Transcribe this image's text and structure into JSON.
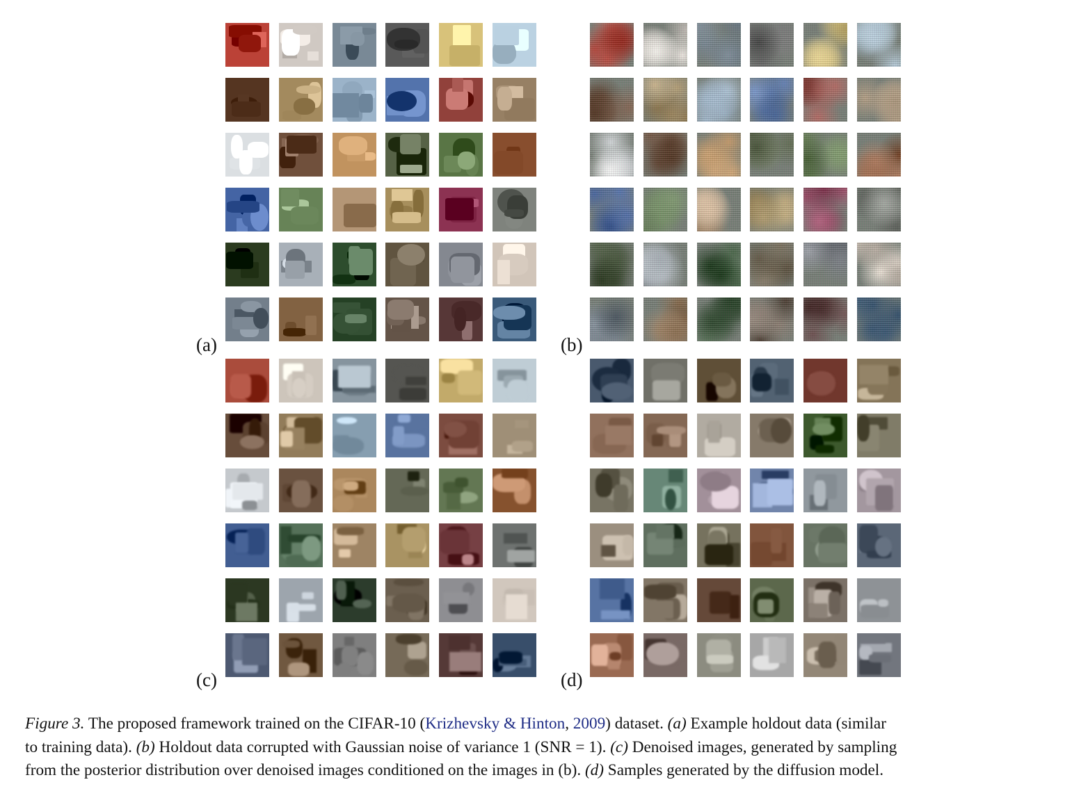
{
  "figure": {
    "panels": [
      {
        "id": "a",
        "label": "(a)",
        "kind": "clean"
      },
      {
        "id": "b",
        "label": "(b)",
        "kind": "noisy"
      },
      {
        "id": "c",
        "label": "(c)",
        "kind": "denoised"
      },
      {
        "id": "d",
        "label": "(d)",
        "kind": "generated"
      }
    ],
    "grid": {
      "rows": 6,
      "cols": 6
    },
    "palette": {
      "panel_a": [
        [
          "#b33a2f",
          "#d9d2cc",
          "#7f8f9c",
          "#5c5c5c",
          "#d8c27a",
          "#b8cfdf"
        ],
        [
          "#5a3a26",
          "#a58c60",
          "#9ab2c8",
          "#4f6fa8",
          "#8a3a34",
          "#a18a6e"
        ],
        [
          "#d9dde0",
          "#6a4a36",
          "#b88a56",
          "#5e6a4e",
          "#5e7a4a",
          "#8a5030"
        ],
        [
          "#3a5a9a",
          "#6e8a5e",
          "#b89a7a",
          "#a8905e",
          "#8a3050",
          "#7a7e78"
        ],
        [
          "#2e3e22",
          "#a8b0b8",
          "#2a4a2a",
          "#5a4e3a",
          "#7a7e86",
          "#d8ccc0"
        ],
        [
          "#6e7a86",
          "#7a5a3a",
          "#2e4a2e",
          "#6a5a4e",
          "#5a3a3a",
          "#3a5a7a"
        ]
      ],
      "panel_c": [
        [
          "#a84a3a",
          "#c8c0b6",
          "#7e8c96",
          "#5e5e5a",
          "#c8b070",
          "#c2d0d8"
        ],
        [
          "#5e4432",
          "#9a8462",
          "#8aa2b4",
          "#5a74a0",
          "#7a4a3e",
          "#9a8a72"
        ],
        [
          "#c8ccd0",
          "#6a5240",
          "#a8845a",
          "#5e6250",
          "#5a6e4a",
          "#8e5a36"
        ],
        [
          "#3e5a8e",
          "#4e6a52",
          "#a88e6e",
          "#b09a6a",
          "#7a4448",
          "#6e7270"
        ],
        [
          "#34402a",
          "#a2aab2",
          "#2e3e2e",
          "#6a5e4e",
          "#8a8a8e",
          "#cac0b6"
        ],
        [
          "#4e5a72",
          "#6e563e",
          "#7a7a7a",
          "#6e6250",
          "#5e4240",
          "#3e5470"
        ]
      ],
      "panel_d": [
        [
          "#4a5a6e",
          "#6e6e66",
          "#5a4a32",
          "#4a5a6a",
          "#7a4036",
          "#8a7a5e"
        ],
        [
          "#8a6a56",
          "#7a5e4a",
          "#b8b2a8",
          "#8a7e6e",
          "#3e5a2e",
          "#7e7a66"
        ],
        [
          "#7e7a6a",
          "#6a8a7a",
          "#a2909a",
          "#6e82a8",
          "#8a9298",
          "#9a8e96"
        ],
        [
          "#9a8e7e",
          "#5a6a5a",
          "#6e6a56",
          "#8a5e46",
          "#6e7a6a",
          "#5e6a7a"
        ],
        [
          "#4e6a9a",
          "#8a7e6e",
          "#6a4e3e",
          "#5e6a4e",
          "#7a7066",
          "#8a8e92"
        ],
        [
          "#9e6e56",
          "#7a6a66",
          "#8a8a7e",
          "#a2a2a2",
          "#8a7e6e",
          "#7a7e86"
        ]
      ]
    }
  },
  "caption": {
    "line1": [
      {
        "t": "Figure 3.",
        "it": true
      },
      {
        "t": "  The proposed framework trained on the CIFAR-10 ("
      },
      {
        "t": "Krizhevsky & Hinton",
        "cite": true
      },
      {
        "t": ", "
      },
      {
        "t": "2009",
        "cite": true
      },
      {
        "t": ") dataset.  "
      },
      {
        "t": "(a)",
        "it": true
      },
      {
        "t": " Example holdout data (similar"
      }
    ],
    "line2": [
      {
        "t": "to training data).  "
      },
      {
        "t": "(b)",
        "it": true
      },
      {
        "t": " Holdout data corrupted with Gaussian noise of variance 1 (SNR = 1).  "
      },
      {
        "t": "(c)",
        "it": true
      },
      {
        "t": " Denoised images, generated by sampling"
      }
    ],
    "line3": [
      {
        "t": "from the posterior distribution over denoised images conditioned on the images in (b).  "
      },
      {
        "t": "(d)",
        "it": true
      },
      {
        "t": " Samples generated by the diffusion model."
      }
    ]
  }
}
